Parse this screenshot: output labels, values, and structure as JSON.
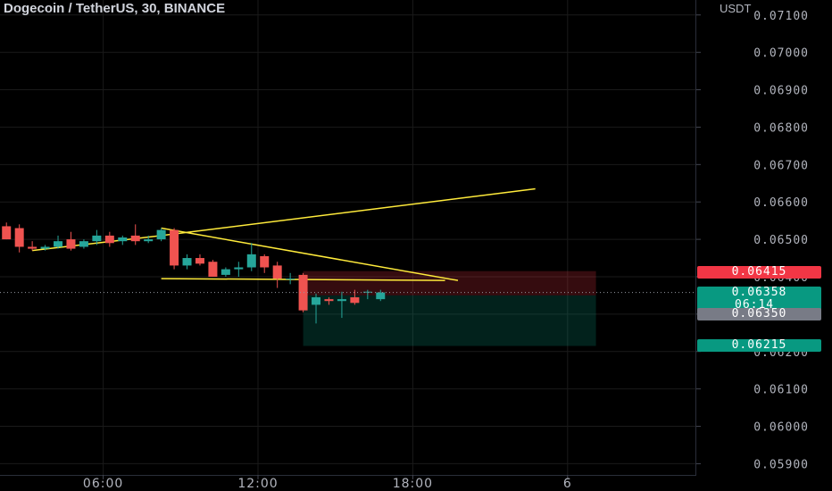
{
  "header": {
    "title": "Dogecoin / TetherUS, 30, BINANCE",
    "currency": "USDT"
  },
  "chart_data": {
    "type": "candlestick",
    "symbol": "Dogecoin / TetherUS",
    "interval": "30",
    "exchange": "BINANCE",
    "y_axis": {
      "unit": "USDT",
      "range": [
        0.0587,
        0.0714
      ],
      "ticks": [
        "0.07100",
        "0.07000",
        "0.06900",
        "0.06800",
        "0.06700",
        "0.06600",
        "0.06500",
        "0.06400",
        "0.06300",
        "0.06200",
        "0.06100",
        "0.06000",
        "0.05900"
      ]
    },
    "x_axis": {
      "ticks": [
        {
          "label": "06:00",
          "bar": 8
        },
        {
          "label": "12:00",
          "bar": 20
        },
        {
          "label": "18:00",
          "bar": 32
        },
        {
          "label": "6",
          "bar": 44
        }
      ]
    },
    "candles": [
      {
        "o": 0.06535,
        "h": 0.06545,
        "l": 0.065,
        "c": 0.065
      },
      {
        "o": 0.0653,
        "h": 0.0654,
        "l": 0.06465,
        "c": 0.0648
      },
      {
        "o": 0.0648,
        "h": 0.06495,
        "l": 0.0647,
        "c": 0.06475
      },
      {
        "o": 0.06475,
        "h": 0.06485,
        "l": 0.0647,
        "c": 0.0648
      },
      {
        "o": 0.0648,
        "h": 0.0651,
        "l": 0.06475,
        "c": 0.06495
      },
      {
        "o": 0.065,
        "h": 0.0652,
        "l": 0.0647,
        "c": 0.06475
      },
      {
        "o": 0.0648,
        "h": 0.065,
        "l": 0.06475,
        "c": 0.06495
      },
      {
        "o": 0.06495,
        "h": 0.06525,
        "l": 0.06485,
        "c": 0.0651
      },
      {
        "o": 0.0651,
        "h": 0.0652,
        "l": 0.0648,
        "c": 0.0649
      },
      {
        "o": 0.06495,
        "h": 0.0651,
        "l": 0.06485,
        "c": 0.06505
      },
      {
        "o": 0.0651,
        "h": 0.0654,
        "l": 0.06485,
        "c": 0.06495
      },
      {
        "o": 0.06495,
        "h": 0.0651,
        "l": 0.0649,
        "c": 0.065
      },
      {
        "o": 0.065,
        "h": 0.0653,
        "l": 0.06495,
        "c": 0.06525
      },
      {
        "o": 0.06525,
        "h": 0.0653,
        "l": 0.0642,
        "c": 0.0643
      },
      {
        "o": 0.0643,
        "h": 0.0646,
        "l": 0.0642,
        "c": 0.0645
      },
      {
        "o": 0.0645,
        "h": 0.0646,
        "l": 0.0643,
        "c": 0.06435
      },
      {
        "o": 0.0644,
        "h": 0.06445,
        "l": 0.064,
        "c": 0.064
      },
      {
        "o": 0.06405,
        "h": 0.06425,
        "l": 0.064,
        "c": 0.0642
      },
      {
        "o": 0.0642,
        "h": 0.0644,
        "l": 0.064,
        "c": 0.06425
      },
      {
        "o": 0.06425,
        "h": 0.0649,
        "l": 0.06415,
        "c": 0.0646
      },
      {
        "o": 0.06455,
        "h": 0.0646,
        "l": 0.0641,
        "c": 0.06425
      },
      {
        "o": 0.0643,
        "h": 0.0644,
        "l": 0.0637,
        "c": 0.06395
      },
      {
        "o": 0.06395,
        "h": 0.0641,
        "l": 0.0638,
        "c": 0.06395
      },
      {
        "o": 0.06405,
        "h": 0.0641,
        "l": 0.06305,
        "c": 0.0631
      },
      {
        "o": 0.06325,
        "h": 0.06355,
        "l": 0.06275,
        "c": 0.06345
      },
      {
        "o": 0.0634,
        "h": 0.06345,
        "l": 0.06325,
        "c": 0.06335
      },
      {
        "o": 0.06335,
        "h": 0.0636,
        "l": 0.0629,
        "c": 0.0634
      },
      {
        "o": 0.06345,
        "h": 0.06365,
        "l": 0.06325,
        "c": 0.0633
      },
      {
        "o": 0.0636,
        "h": 0.06365,
        "l": 0.0634,
        "c": 0.0636
      },
      {
        "o": 0.0634,
        "h": 0.06365,
        "l": 0.06335,
        "c": 0.06358
      }
    ],
    "current_price": 0.06358,
    "countdown": "06:14",
    "price_labels": [
      {
        "value": "0.06415",
        "color": "#f23645"
      },
      {
        "value": "0.06358",
        "color": "#089981",
        "sub": "06:14"
      },
      {
        "value": "0.06350",
        "color": "#787b86"
      },
      {
        "value": "0.06215",
        "color": "#089981"
      }
    ],
    "position": {
      "entry": 0.0635,
      "stop": 0.06415,
      "target": 0.06215,
      "start_bar": 23.5,
      "end_bar": 46.2
    },
    "drawings": [
      {
        "points": [
          [
            2.5,
            0.0647
          ],
          [
            12.5,
            0.0651
          ],
          [
            41.5,
            0.06635
          ]
        ]
      },
      {
        "points": [
          [
            12.5,
            0.0653
          ],
          [
            35.5,
            0.0639
          ]
        ]
      },
      {
        "points": [
          [
            12.5,
            0.06395
          ],
          [
            34.5,
            0.0639
          ]
        ]
      }
    ],
    "colors": {
      "up": "#26a69a",
      "down": "#ef5350",
      "drawing": "#ffeb3b",
      "stop_zone": "#f23645",
      "target_zone": "#089981",
      "grid": "#1a1a1a",
      "axis_text": "#b2b5be"
    }
  }
}
